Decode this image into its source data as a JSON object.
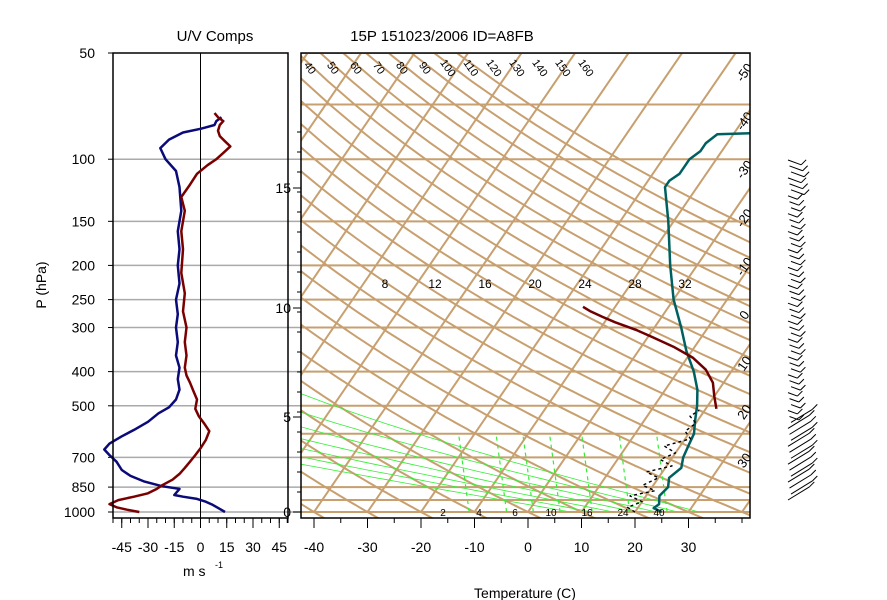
{
  "chart_data": [
    {
      "type": "line",
      "title": "U/V Comps",
      "xlabel": "m s",
      "xlabel_sup": "-1",
      "ylabel": "P (hPa)",
      "xlim": [
        -50,
        50
      ],
      "ylim": [
        1000,
        50
      ],
      "y_scale": "log",
      "x_ticks": [
        "-45",
        "-30",
        "-15",
        "0",
        "15",
        "30",
        "45"
      ],
      "y_ticks": [
        "50",
        "100",
        "150",
        "200",
        "250",
        "300",
        "400",
        "500",
        "700",
        "850",
        "1000"
      ],
      "grid": "horizontal at pressure ticks",
      "series": [
        {
          "color": "#0a0a78",
          "points": [
            [
              14,
              1000
            ],
            [
              11,
              980
            ],
            [
              7,
              955
            ],
            [
              3,
              935
            ],
            [
              -2,
              918
            ],
            [
              -10,
              905
            ],
            [
              -15,
              895
            ],
            [
              -12,
              860
            ],
            [
              -22,
              845
            ],
            [
              -32,
              820
            ],
            [
              -40,
              790
            ],
            [
              -45,
              760
            ],
            [
              -48,
              720
            ],
            [
              -52,
              690
            ],
            [
              -55,
              665
            ],
            [
              -52,
              640
            ],
            [
              -45,
              610
            ],
            [
              -38,
              585
            ],
            [
              -30,
              555
            ],
            [
              -24,
              525
            ],
            [
              -18,
              505
            ],
            [
              -14,
              480
            ],
            [
              -12,
              450
            ],
            [
              -13,
              420
            ],
            [
              -12,
              390
            ],
            [
              -14,
              360
            ],
            [
              -13,
              330
            ],
            [
              -14,
              300
            ],
            [
              -13,
              275
            ],
            [
              -14,
              250
            ],
            [
              -12,
              225
            ],
            [
              -13,
              200
            ],
            [
              -12,
              180
            ],
            [
              -13,
              160
            ],
            [
              -11,
              140
            ],
            [
              -12,
              120
            ],
            [
              -14,
              108
            ],
            [
              -20,
              100
            ],
            [
              -23,
              93
            ],
            [
              -18,
              88
            ],
            [
              -10,
              84
            ],
            [
              0,
              82
            ],
            [
              4,
              81
            ],
            [
              8,
              80
            ],
            [
              9,
              78
            ],
            [
              12,
              76
            ]
          ]
        },
        {
          "color": "#7a0000",
          "points": [
            [
              -35,
              1000
            ],
            [
              -42,
              985
            ],
            [
              -48,
              970
            ],
            [
              -52,
              950
            ],
            [
              -47,
              925
            ],
            [
              -38,
              905
            ],
            [
              -30,
              885
            ],
            [
              -25,
              860
            ],
            [
              -22,
              840
            ],
            [
              -16,
              810
            ],
            [
              -12,
              780
            ],
            [
              -9,
              750
            ],
            [
              -6,
              720
            ],
            [
              -3,
              690
            ],
            [
              0,
              660
            ],
            [
              3,
              625
            ],
            [
              5,
              590
            ],
            [
              2,
              560
            ],
            [
              -1,
              535
            ],
            [
              -3,
              510
            ],
            [
              -2,
              480
            ],
            [
              -4,
              455
            ],
            [
              -6,
              430
            ],
            [
              -8,
              410
            ],
            [
              -9,
              390
            ],
            [
              -8,
              360
            ],
            [
              -9,
              330
            ],
            [
              -8,
              300
            ],
            [
              -10,
              270
            ],
            [
              -9,
              240
            ],
            [
              -11,
              210
            ],
            [
              -10,
              180
            ],
            [
              -11,
              160
            ],
            [
              -9,
              140
            ],
            [
              -11,
              128
            ],
            [
              -6,
              118
            ],
            [
              -2,
              110
            ],
            [
              4,
              104
            ],
            [
              9,
              100
            ],
            [
              13,
              96
            ],
            [
              17,
              92
            ],
            [
              14,
              89
            ],
            [
              11,
              86
            ],
            [
              10,
              83
            ],
            [
              11,
              80
            ],
            [
              13,
              78
            ],
            [
              10,
              76
            ],
            [
              8,
              74
            ]
          ]
        }
      ]
    },
    {
      "type": "line",
      "title": "15P 151023/2006 ID=A8FB",
      "xlabel": "Temperature (C)",
      "xlim": [
        -45,
        40
      ],
      "ylim": [
        1000,
        50
      ],
      "x_ticks": [
        "-40",
        "-30",
        "-20",
        "-10",
        "0",
        "10",
        "20",
        "30"
      ],
      "height_axis_ticks": [
        "0",
        "5",
        "10",
        "15"
      ],
      "isotherm_labels": [
        "-50",
        "-40",
        "-30",
        "-20",
        "-10",
        "0",
        "10",
        "20",
        "30"
      ],
      "dry_adiabat_labels": [
        "40",
        "50",
        "60",
        "70",
        "80",
        "90",
        "100",
        "110",
        "120",
        "130",
        "140",
        "150",
        "160"
      ],
      "moist_adiabat_labels": [
        "8",
        "12",
        "16",
        "20",
        "24",
        "28",
        "32"
      ],
      "mixing_ratio_labels": [
        "2",
        "4",
        "6",
        "10",
        "16",
        "24",
        "40"
      ],
      "background_color": "#c8a070",
      "moist_color": "#33ee33",
      "series": [
        {
          "name": "",
          "color": "#006060",
          "points": [
            [
              25,
              1000
            ],
            [
              23,
              975
            ],
            [
              23.5,
              950
            ],
            [
              22.5,
              900
            ],
            [
              23,
              850
            ],
            [
              22,
              800
            ],
            [
              23,
              750
            ],
            [
              22,
              700
            ],
            [
              21.5,
              650
            ],
            [
              21,
              600
            ],
            [
              19.5,
              550
            ],
            [
              18,
              500
            ],
            [
              16,
              450
            ],
            [
              13,
              400
            ],
            [
              9,
              350
            ],
            [
              5,
              300
            ],
            [
              0,
              250
            ],
            [
              -5,
              200
            ],
            [
              -11,
              150
            ],
            [
              -16,
              120
            ],
            [
              -16,
              115
            ],
            [
              -15,
              110
            ],
            [
              -15,
              105
            ],
            [
              -15,
              100
            ],
            [
              -14,
              95
            ],
            [
              -14,
              90
            ],
            [
              -13,
              85
            ],
            [
              -3,
              84
            ],
            [
              2,
              83
            ],
            [
              6,
              82
            ],
            [
              9,
              81
            ],
            [
              12,
              80
            ],
            [
              15,
              78
            ],
            [
              17,
              77
            ]
          ]
        },
        {
          "name": "",
          "color": "#700000",
          "points": [
            [
              22,
              510
            ],
            [
              20,
              470
            ],
            [
              18,
              430
            ],
            [
              15,
              395
            ],
            [
              11,
              365
            ],
            [
              6,
              340
            ],
            [
              1,
              320
            ],
            [
              -3,
              305
            ],
            [
              -8,
              290
            ],
            [
              -11,
              280
            ],
            [
              -14,
              270
            ],
            [
              -16,
              262
            ]
          ]
        },
        {
          "name": "",
          "color": "#000000",
          "dashed": true,
          "points": [
            [
              20,
              1000
            ],
            [
              18,
              970
            ],
            [
              20,
              935
            ],
            [
              17,
              900
            ],
            [
              21,
              870
            ],
            [
              18,
              840
            ],
            [
              20,
              800
            ],
            [
              17,
              770
            ],
            [
              21,
              740
            ],
            [
              18,
              710
            ],
            [
              20,
              680
            ],
            [
              17,
              650
            ],
            [
              21,
              620
            ],
            [
              19,
              590
            ],
            [
              20,
              560
            ],
            [
              18,
              535
            ],
            [
              19,
              515
            ]
          ]
        }
      ]
    },
    {
      "type": "wind barbs",
      "levels": 58
    }
  ]
}
